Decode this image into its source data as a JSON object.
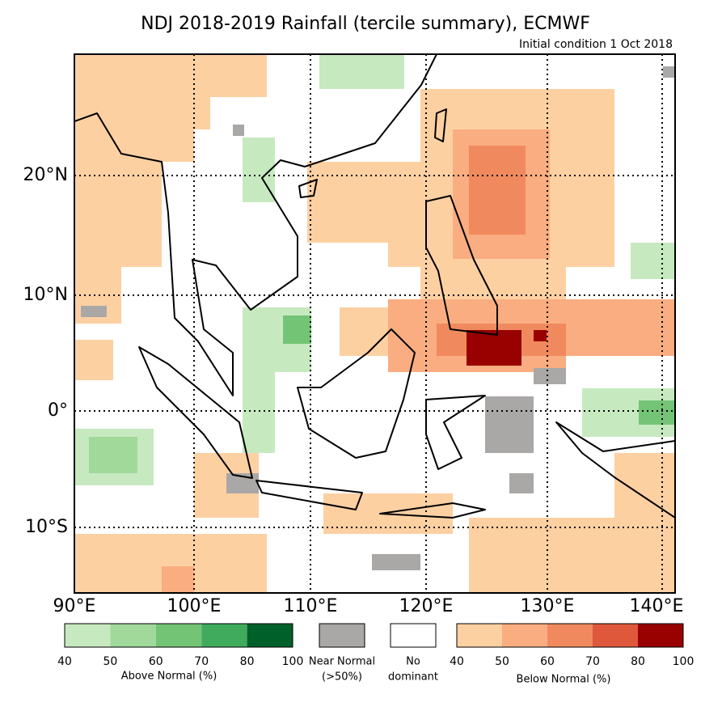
{
  "title": "NDJ 2018-2019 Rainfall (tercile summary), ECMWF",
  "subtitle": "Initial condition 1 Oct 2018",
  "map": {
    "lon_ticks": [
      "90°E",
      "100°E",
      "110°E",
      "120°E",
      "130°E",
      "140°E"
    ],
    "lat_ticks": [
      "20°N",
      "10°N",
      "0°",
      "10°S"
    ]
  },
  "legend": {
    "above": {
      "label": "Above Normal (%)",
      "ticks": [
        "40",
        "50",
        "60",
        "70",
        "80",
        "100"
      ],
      "colors": [
        "#c7e9c0",
        "#a1d99b",
        "#74c476",
        "#41ab5d",
        "#00602a"
      ]
    },
    "near": {
      "label": [
        "Near Normal",
        "(>50%)"
      ],
      "color": "#aaa7a7"
    },
    "none": {
      "label": [
        "No",
        "dominant"
      ],
      "color": "#ffffff"
    },
    "below": {
      "label": "Below Normal (%)",
      "ticks": [
        "40",
        "50",
        "60",
        "70",
        "80",
        "100"
      ],
      "colors": [
        "#fdd0a2",
        "#f9ad80",
        "#f08a5e",
        "#e0583c",
        "#990000"
      ]
    }
  }
}
